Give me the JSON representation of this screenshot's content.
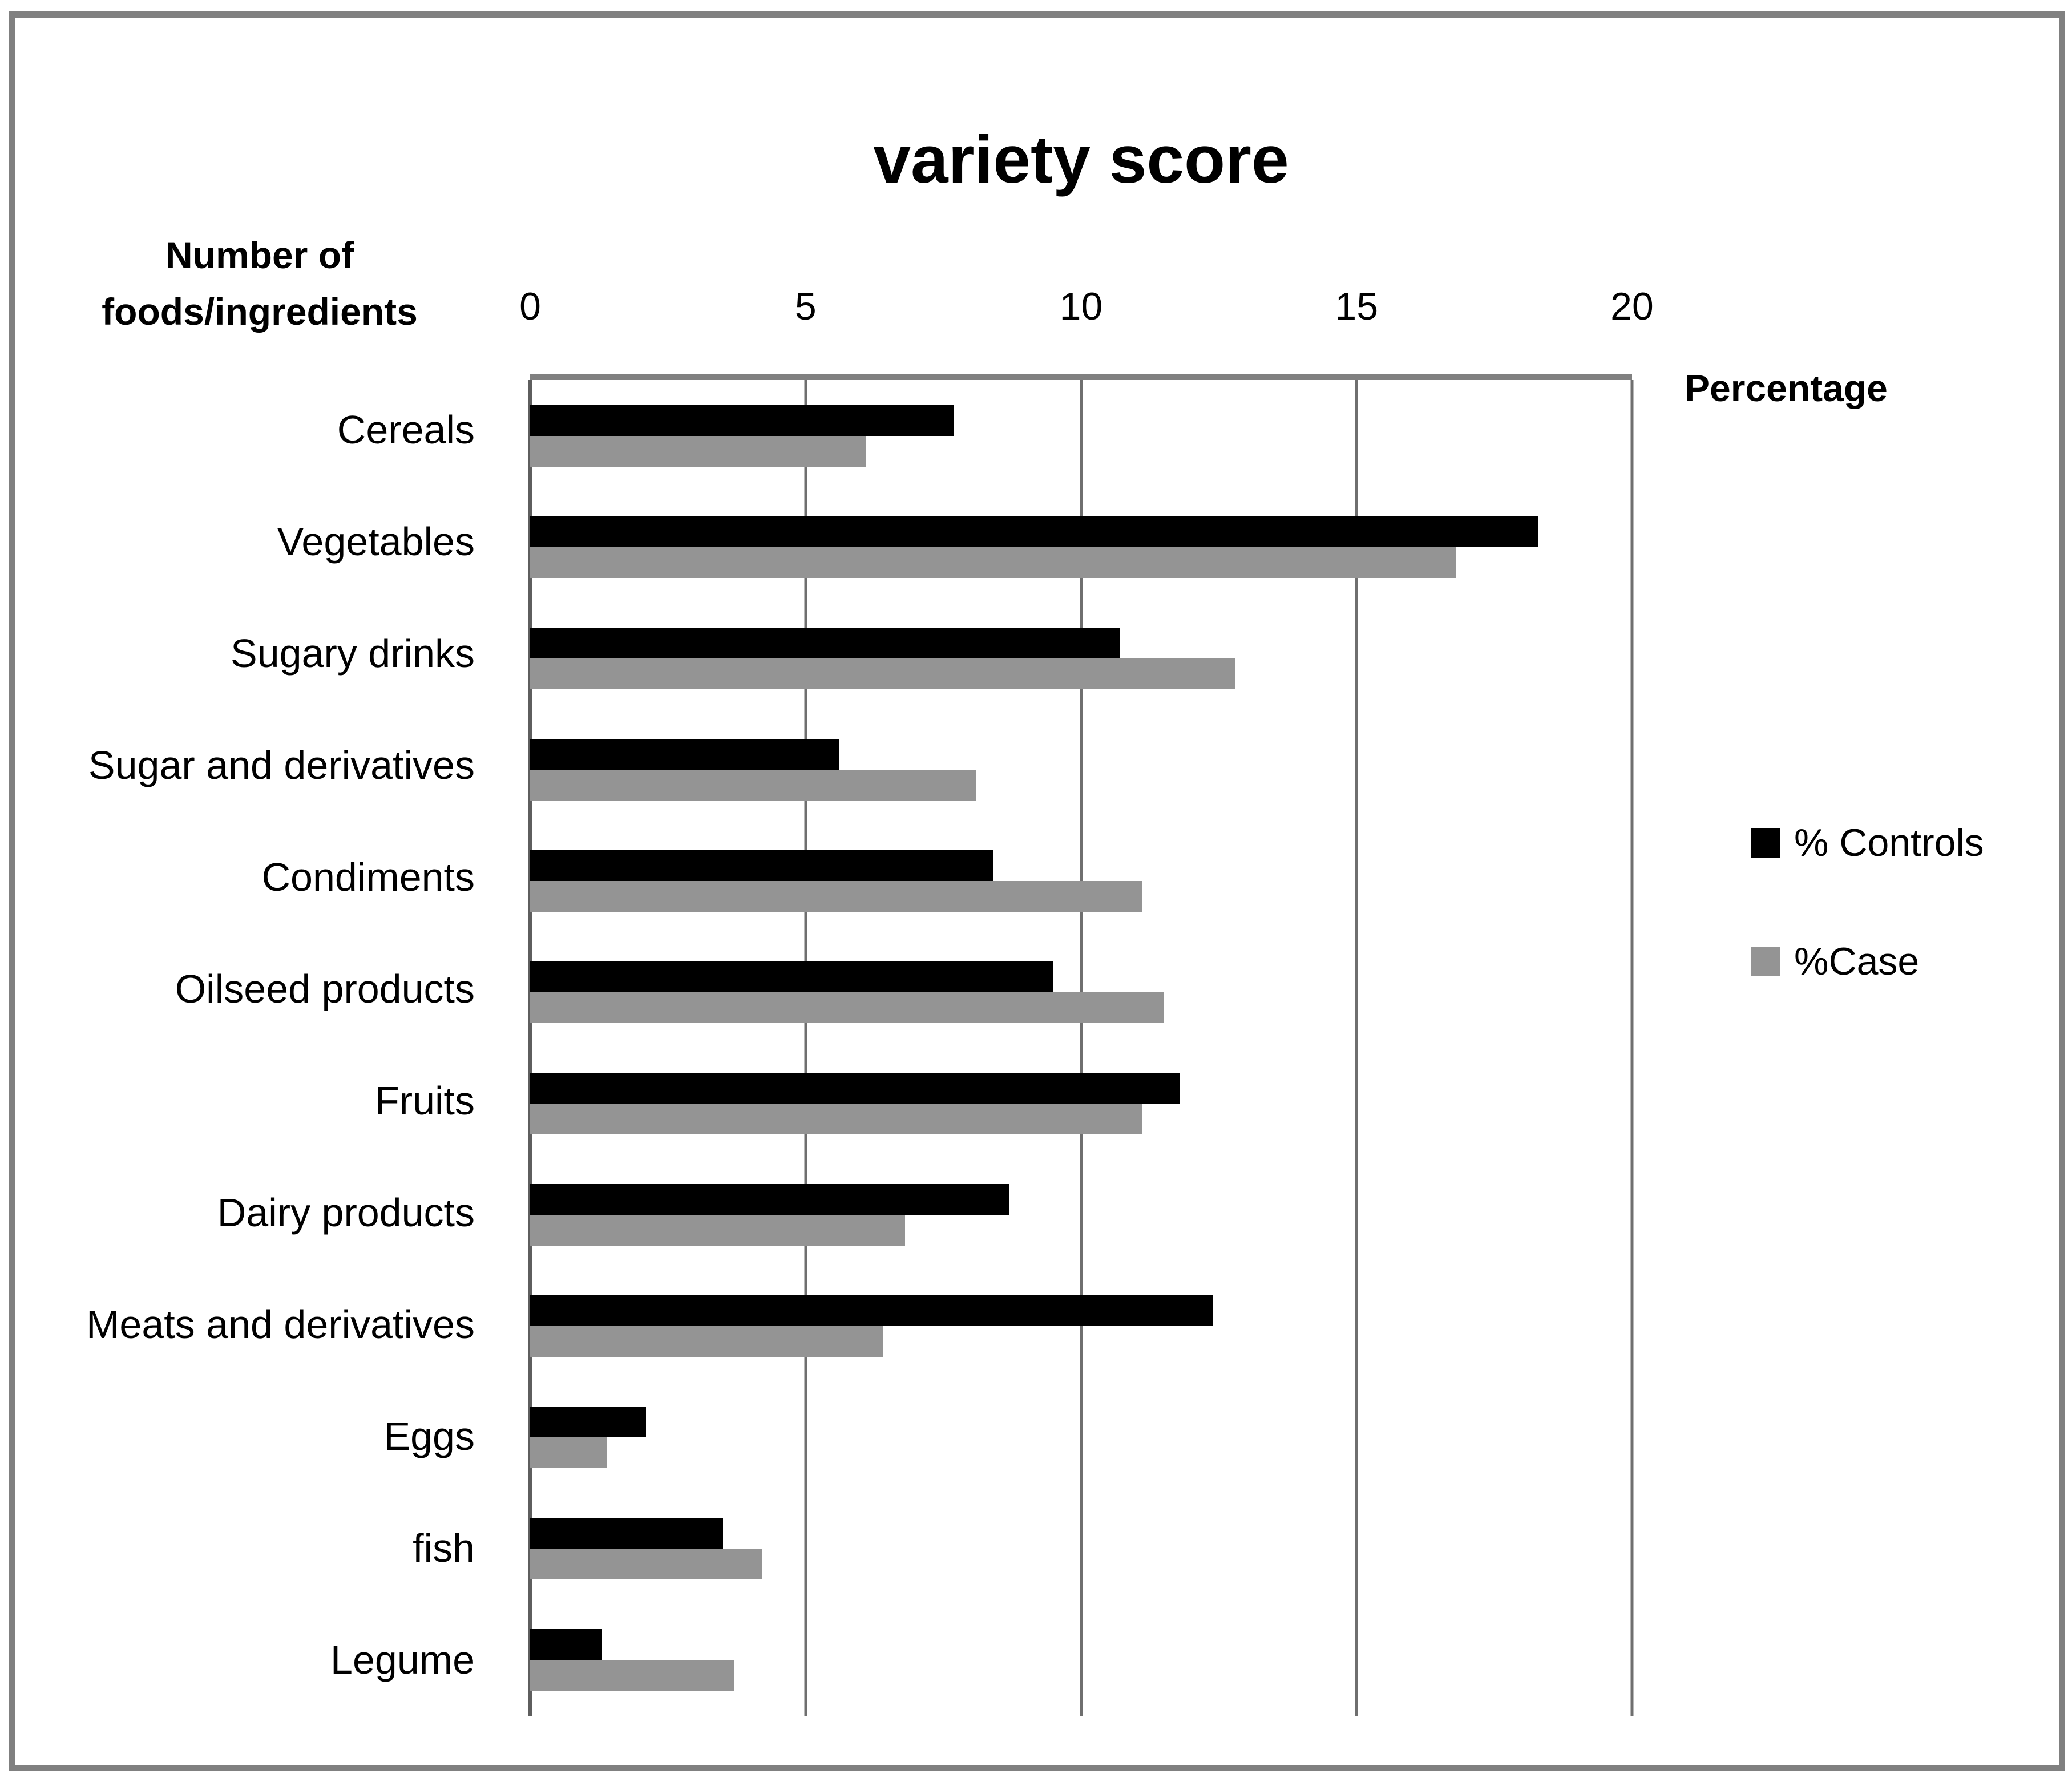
{
  "figure": {
    "title": "variety score",
    "y_axis_label": "Number of\nfoods/ingredients",
    "x_axis_label": "Percentage"
  },
  "colors": {
    "controls_bar": "#000000",
    "case_bar": "#949494",
    "gridline": "#6f6f6f",
    "frame": "#808080",
    "text": "#000000"
  },
  "chart_data": {
    "type": "bar",
    "orientation": "horizontal",
    "title": "variety score",
    "xlabel": "Percentage",
    "ylabel": "Number of foods/ingredients",
    "xlim": [
      0,
      20
    ],
    "xticks": [
      0,
      5,
      10,
      15,
      20
    ],
    "grid": "vertical",
    "legend_position": "right",
    "categories": [
      "Cereals",
      "Vegetables",
      "Sugary drinks",
      "Sugar and derivatives",
      "Condiments",
      "Oilseed products",
      "Fruits",
      "Dairy products",
      "Meats and derivatives",
      "Eggs",
      "fish",
      "Legume"
    ],
    "series": [
      {
        "name": "% Controls",
        "color": "#000000",
        "values": [
          7.7,
          18.3,
          10.7,
          5.6,
          8.4,
          9.5,
          11.8,
          8.7,
          12.4,
          2.1,
          3.5,
          1.3
        ]
      },
      {
        "name": "%Case",
        "color": "#949494",
        "values": [
          6.1,
          16.8,
          12.8,
          8.1,
          11.1,
          11.5,
          11.1,
          6.8,
          6.4,
          1.4,
          4.2,
          3.7
        ]
      }
    ]
  }
}
